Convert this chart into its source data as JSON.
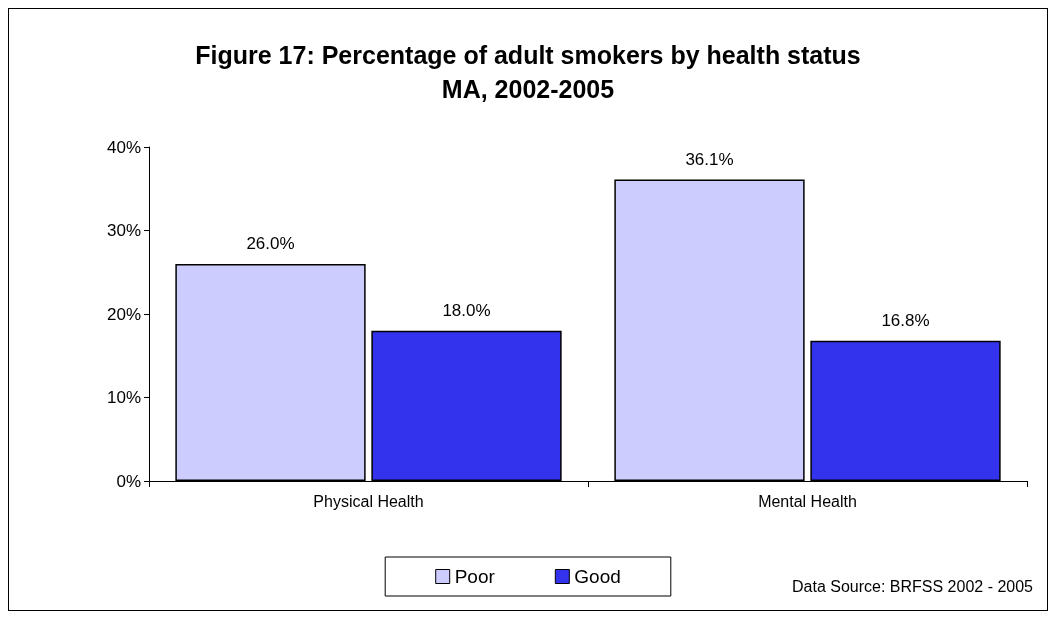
{
  "chart_data": {
    "type": "bar",
    "title": "Figure 17: Percentage of adult smokers by health status\nMA, 2002-2005",
    "categories": [
      "Physical Health",
      "Mental Health"
    ],
    "series": [
      {
        "name": "Poor",
        "color": "#ccccff",
        "values": [
          26.0,
          36.1
        ],
        "value_labels": [
          "26.0%",
          "36.1%"
        ]
      },
      {
        "name": "Good",
        "color": "#3333ee",
        "values": [
          18.0,
          16.8
        ],
        "value_labels": [
          "18.0%",
          "16.8%"
        ]
      }
    ],
    "ylim": [
      0,
      40
    ],
    "yticks": [
      {
        "value": 0,
        "label": "0%"
      },
      {
        "value": 10,
        "label": "10%"
      },
      {
        "value": 20,
        "label": "20%"
      },
      {
        "value": 30,
        "label": "30%"
      },
      {
        "value": 40,
        "label": "40%"
      }
    ],
    "grid": false,
    "legend": "bottom",
    "annotations": [
      "Data Source: BRFSS 2002 - 2005"
    ]
  }
}
